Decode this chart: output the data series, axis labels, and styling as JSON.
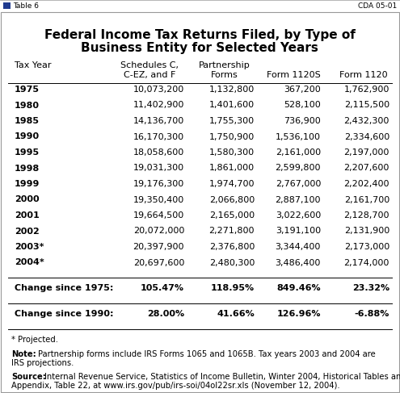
{
  "title_line1": "Federal Income Tax Returns Filed, by Type of",
  "title_line2": "Business Entity for Selected Years",
  "rows": [
    [
      "1975",
      "10,073,200",
      "1,132,800",
      "367,200",
      "1,762,900"
    ],
    [
      "1980",
      "11,402,900",
      "1,401,600",
      "528,100",
      "2,115,500"
    ],
    [
      "1985",
      "14,136,700",
      "1,755,300",
      "736,900",
      "2,432,300"
    ],
    [
      "1990",
      "16,170,300",
      "1,750,900",
      "1,536,100",
      "2,334,600"
    ],
    [
      "1995",
      "18,058,600",
      "1,580,300",
      "2,161,000",
      "2,197,000"
    ],
    [
      "1998",
      "19,031,300",
      "1,861,000",
      "2,599,800",
      "2,207,600"
    ],
    [
      "1999",
      "19,176,300",
      "1,974,700",
      "2,767,000",
      "2,202,400"
    ],
    [
      "2000",
      "19,350,400",
      "2,066,800",
      "2,887,100",
      "2,161,700"
    ],
    [
      "2001",
      "19,664,500",
      "2,165,000",
      "3,022,600",
      "2,128,700"
    ],
    [
      "2002",
      "20,072,000",
      "2,271,800",
      "3,191,100",
      "2,131,900"
    ],
    [
      "2003*",
      "20,397,900",
      "2,376,800",
      "3,344,400",
      "2,173,000"
    ],
    [
      "2004*",
      "20,697,600",
      "2,480,300",
      "3,486,400",
      "2,174,000"
    ]
  ],
  "change_1975_label": "Change since 1975:",
  "change_1975": [
    "105.47%",
    "118.95%",
    "849.46%",
    "23.32%"
  ],
  "change_1990_label": "Change since 1990:",
  "change_1990": [
    "28.00%",
    "41.66%",
    "126.96%",
    "-6.88%"
  ],
  "table_label": "Table 6",
  "top_right_label": "CDA 05-01",
  "header_bar_color": "#C8C8C8",
  "bg_color": "#FFFFFF",
  "border_color": "#888888",
  "topbar_bg": "#E8E8E8",
  "topbar_blue": "#1F3A8F"
}
